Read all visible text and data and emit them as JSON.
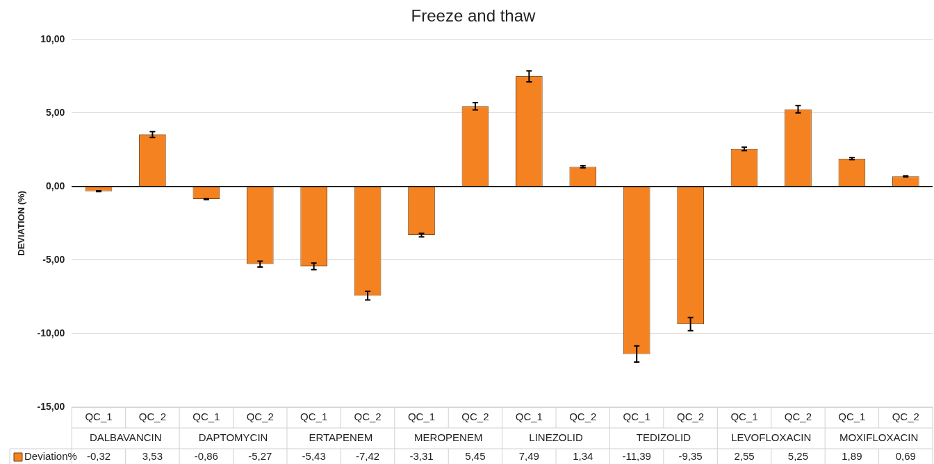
{
  "chart_data": {
    "type": "bar",
    "title": "Freeze and thaw",
    "ylabel": "DEVIATION (%)",
    "categories": [
      "QC_1",
      "QC_2",
      "QC_1",
      "QC_2",
      "QC_1",
      "QC_2",
      "QC_1",
      "QC_2",
      "QC_1",
      "QC_2",
      "QC_1",
      "QC_2",
      "QC_1",
      "QC_2",
      "QC_1",
      "QC_2"
    ],
    "annotations": [
      "DALBAVANCIN",
      "DAPTOMYCIN",
      "ERTAPENEM",
      "MEROPENEM",
      "LINEZOLID",
      "TEDIZOLID",
      "LEVOFLOXACIN",
      "MOXIFLOXACIN"
    ],
    "series": [
      {
        "name": "Deviation%",
        "color": "#f58220",
        "values": [
          -0.32,
          3.53,
          -0.86,
          -5.27,
          -5.43,
          -7.42,
          -3.31,
          5.45,
          7.49,
          1.34,
          -11.39,
          -9.35,
          2.55,
          5.25,
          1.89,
          0.69
        ],
        "errors": [
          0.03,
          0.2,
          0.03,
          0.2,
          0.22,
          0.3,
          0.12,
          0.25,
          0.37,
          0.07,
          0.55,
          0.45,
          0.12,
          0.25,
          0.07,
          0.03
        ],
        "value_labels": [
          "-0,32",
          "3,53",
          "-0,86",
          "-5,27",
          "-5,43",
          "-7,42",
          "-3,31",
          "5,45",
          "7,49",
          "1,34",
          "-11,39",
          "-9,35",
          "2,55",
          "5,25",
          "1,89",
          "0,69"
        ]
      }
    ],
    "ylim": [
      -15,
      10
    ],
    "yticks": [
      {
        "value": -15,
        "label": "-15,00"
      },
      {
        "value": -10,
        "label": "-10,00"
      },
      {
        "value": -5,
        "label": "-5,00"
      },
      {
        "value": 0,
        "label": "0,00"
      },
      {
        "value": 5,
        "label": "5,00"
      },
      {
        "value": 10,
        "label": "10,00"
      }
    ],
    "grid": "y",
    "legend": "bottom"
  }
}
